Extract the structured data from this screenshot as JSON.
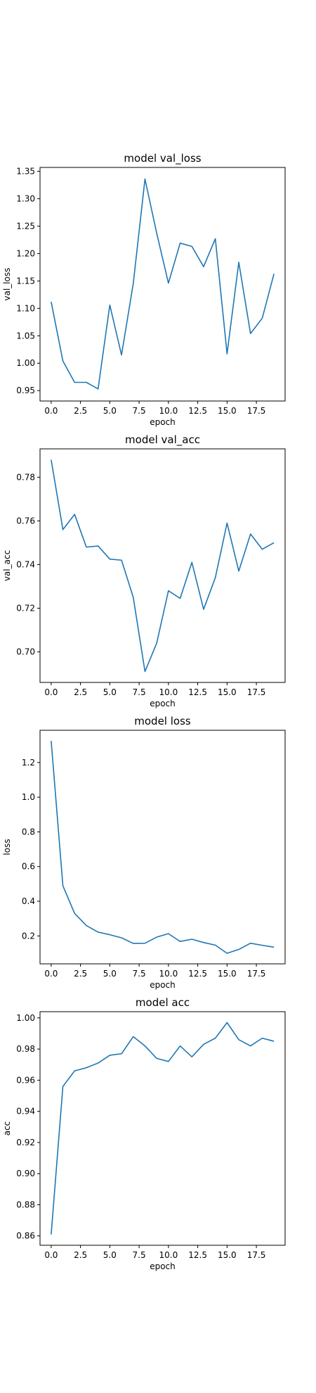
{
  "chart_data": [
    {
      "type": "line",
      "title": "model val_loss",
      "xlabel": "epoch",
      "ylabel": "val_loss",
      "x": [
        0,
        1,
        2,
        3,
        4,
        5,
        6,
        7,
        8,
        9,
        10,
        11,
        12,
        13,
        14,
        15,
        16,
        17,
        18,
        19
      ],
      "values": [
        1.112,
        1.004,
        0.965,
        0.965,
        0.953,
        1.106,
        1.015,
        1.145,
        1.336,
        1.237,
        1.146,
        1.219,
        1.213,
        1.176,
        1.227,
        1.017,
        1.184,
        1.054,
        1.082,
        1.163
      ],
      "xlim": [
        -0.95,
        19.95
      ],
      "ylim": [
        0.931,
        1.357
      ],
      "xticks": [
        0,
        2.5,
        5.0,
        7.5,
        10.0,
        12.5,
        15.0,
        17.5
      ],
      "xtick_labels": [
        "0.0",
        "2.5",
        "5.0",
        "7.5",
        "10.0",
        "12.5",
        "15.0",
        "17.5"
      ],
      "yticks": [
        0.95,
        1.0,
        1.05,
        1.1,
        1.15,
        1.2,
        1.25,
        1.3,
        1.35
      ],
      "ytick_labels": [
        "0.95",
        "1.00",
        "1.05",
        "1.10",
        "1.15",
        "1.20",
        "1.25",
        "1.30",
        "1.35"
      ],
      "grid": false,
      "color": "#1f77b4"
    },
    {
      "type": "line",
      "title": "model val_acc",
      "xlabel": "epoch",
      "ylabel": "val_acc",
      "x": [
        0,
        1,
        2,
        3,
        4,
        5,
        6,
        7,
        8,
        9,
        10,
        11,
        12,
        13,
        14,
        15,
        16,
        17,
        18,
        19
      ],
      "values": [
        0.788,
        0.756,
        0.763,
        0.748,
        0.7485,
        0.7425,
        0.742,
        0.725,
        0.691,
        0.704,
        0.728,
        0.7245,
        0.741,
        0.7195,
        0.734,
        0.759,
        0.737,
        0.754,
        0.747,
        0.75
      ],
      "xlim": [
        -0.95,
        19.95
      ],
      "ylim": [
        0.686,
        0.793
      ],
      "xticks": [
        0,
        2.5,
        5.0,
        7.5,
        10.0,
        12.5,
        15.0,
        17.5
      ],
      "xtick_labels": [
        "0.0",
        "2.5",
        "5.0",
        "7.5",
        "10.0",
        "12.5",
        "15.0",
        "17.5"
      ],
      "yticks": [
        0.7,
        0.72,
        0.74,
        0.76,
        0.78
      ],
      "ytick_labels": [
        "0.70",
        "0.72",
        "0.74",
        "0.76",
        "0.78"
      ],
      "grid": false,
      "color": "#1f77b4"
    },
    {
      "type": "line",
      "title": "model loss",
      "xlabel": "epoch",
      "ylabel": "loss",
      "x": [
        0,
        1,
        2,
        3,
        4,
        5,
        6,
        7,
        8,
        9,
        10,
        11,
        12,
        13,
        14,
        15,
        16,
        17,
        18,
        19
      ],
      "values": [
        1.325,
        0.489,
        0.33,
        0.26,
        0.222,
        0.207,
        0.189,
        0.157,
        0.158,
        0.193,
        0.213,
        0.168,
        0.181,
        0.162,
        0.147,
        0.1,
        0.122,
        0.158,
        0.146,
        0.135
      ],
      "xlim": [
        -0.95,
        19.95
      ],
      "ylim": [
        0.039,
        1.386
      ],
      "xticks": [
        0,
        2.5,
        5.0,
        7.5,
        10.0,
        12.5,
        15.0,
        17.5
      ],
      "xtick_labels": [
        "0.0",
        "2.5",
        "5.0",
        "7.5",
        "10.0",
        "12.5",
        "15.0",
        "17.5"
      ],
      "yticks": [
        0.2,
        0.4,
        0.6,
        0.8,
        1.0,
        1.2
      ],
      "ytick_labels": [
        "0.2",
        "0.4",
        "0.6",
        "0.8",
        "1.0",
        "1.2"
      ],
      "grid": false,
      "color": "#1f77b4"
    },
    {
      "type": "line",
      "title": "model acc",
      "xlabel": "epoch",
      "ylabel": "acc",
      "x": [
        0,
        1,
        2,
        3,
        4,
        5,
        6,
        7,
        8,
        9,
        10,
        11,
        12,
        13,
        14,
        15,
        16,
        17,
        18,
        19
      ],
      "values": [
        0.861,
        0.956,
        0.966,
        0.968,
        0.971,
        0.976,
        0.977,
        0.988,
        0.982,
        0.974,
        0.972,
        0.982,
        0.975,
        0.983,
        0.987,
        0.997,
        0.986,
        0.982,
        0.987,
        0.985
      ],
      "xlim": [
        -0.95,
        19.95
      ],
      "ylim": [
        0.854,
        1.004
      ],
      "xticks": [
        0,
        2.5,
        5.0,
        7.5,
        10.0,
        12.5,
        15.0,
        17.5
      ],
      "xtick_labels": [
        "0.0",
        "2.5",
        "5.0",
        "7.5",
        "10.0",
        "12.5",
        "15.0",
        "17.5"
      ],
      "yticks": [
        0.86,
        0.88,
        0.9,
        0.92,
        0.94,
        0.96,
        0.98,
        1.0
      ],
      "ytick_labels": [
        "0.86",
        "0.88",
        "0.90",
        "0.92",
        "0.94",
        "0.96",
        "0.98",
        "1.00"
      ],
      "grid": false,
      "color": "#1f77b4"
    }
  ]
}
